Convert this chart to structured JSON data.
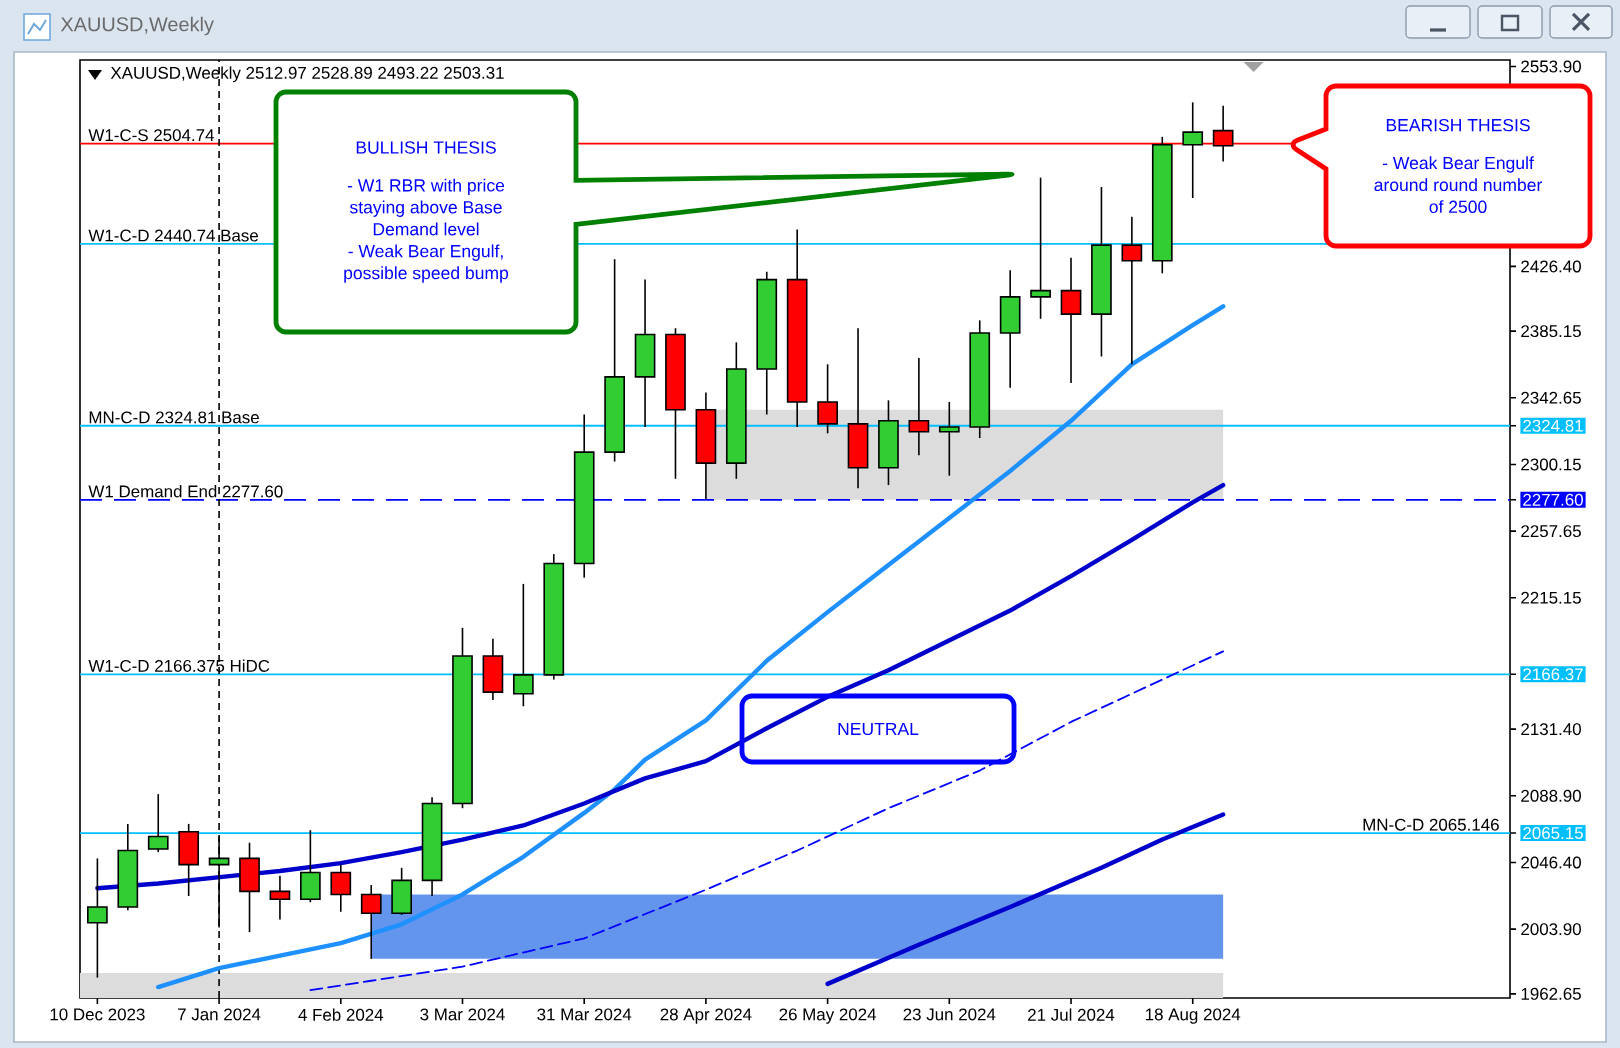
{
  "chart_data": {
    "type": "candlestick",
    "title": "XAUUSD,Weekly",
    "subtitle": "XAUUSD,Weekly 2512.97 2528.89 2493.22 2503.31",
    "x": [
      "2023-12-10",
      "2023-12-17",
      "2023-12-24",
      "2023-12-31",
      "2024-01-07",
      "2024-01-14",
      "2024-01-21",
      "2024-01-28",
      "2024-02-04",
      "2024-02-11",
      "2024-02-18",
      "2024-02-25",
      "2024-03-03",
      "2024-03-10",
      "2024-03-17",
      "2024-03-24",
      "2024-03-31",
      "2024-04-07",
      "2024-04-14",
      "2024-04-21",
      "2024-04-28",
      "2024-05-05",
      "2024-05-12",
      "2024-05-19",
      "2024-05-26",
      "2024-06-02",
      "2024-06-09",
      "2024-06-16",
      "2024-06-23",
      "2024-06-30",
      "2024-07-07",
      "2024-07-14",
      "2024-07-21",
      "2024-07-28",
      "2024-08-04",
      "2024-08-11",
      "2024-08-18",
      "2024-08-25"
    ],
    "ohlc": [
      [
        2008,
        2049,
        1973,
        2018
      ],
      [
        2018,
        2071,
        2016,
        2054
      ],
      [
        2055,
        2090,
        2053,
        2063
      ],
      [
        2066,
        2071,
        2025,
        2045
      ],
      [
        2045,
        2063,
        2005,
        2049
      ],
      [
        2049,
        2059,
        2002,
        2028
      ],
      [
        2028,
        2038,
        2010,
        2023
      ],
      [
        2023,
        2067,
        2021,
        2040
      ],
      [
        2040,
        2045,
        2015,
        2026
      ],
      [
        2026,
        2032,
        1985,
        2014
      ],
      [
        2014,
        2043,
        2013,
        2035
      ],
      [
        2035,
        2088,
        2025,
        2084
      ],
      [
        2084,
        2196,
        2081,
        2178
      ],
      [
        2178,
        2189,
        2150,
        2155
      ],
      [
        2154,
        2224,
        2146,
        2166
      ],
      [
        2166,
        2243,
        2163,
        2237
      ],
      [
        2237,
        2332,
        2228,
        2308
      ],
      [
        2308,
        2431,
        2302,
        2356
      ],
      [
        2356,
        2418,
        2324,
        2383
      ],
      [
        2383,
        2387,
        2291,
        2335
      ],
      [
        2335,
        2346,
        2278,
        2301
      ],
      [
        2301,
        2378,
        2291,
        2361
      ],
      [
        2361,
        2423,
        2332,
        2418
      ],
      [
        2418,
        2450,
        2324,
        2340
      ],
      [
        2340,
        2364,
        2320,
        2326
      ],
      [
        2326,
        2387,
        2285,
        2298
      ],
      [
        2298,
        2341,
        2287,
        2328
      ],
      [
        2328,
        2368,
        2306,
        2321
      ],
      [
        2321,
        2340,
        2293,
        2324
      ],
      [
        2324,
        2392,
        2317,
        2384
      ],
      [
        2384,
        2424,
        2349,
        2407
      ],
      [
        2407,
        2483,
        2393,
        2411
      ],
      [
        2411,
        2432,
        2352,
        2396
      ],
      [
        2396,
        2477,
        2369,
        2440
      ],
      [
        2440,
        2458,
        2364,
        2430
      ],
      [
        2430,
        2509,
        2422,
        2504
      ],
      [
        2504,
        2531,
        2470,
        2512
      ],
      [
        2512.97,
        2528.89,
        2493.22,
        2503.31
      ]
    ],
    "colors": [
      "#32cd32",
      "#32cd32",
      "#32cd32",
      "#ff0000",
      "#32cd32",
      "#ff0000",
      "#ff0000",
      "#32cd32",
      "#ff0000",
      "#ff0000",
      "#32cd32",
      "#32cd32",
      "#32cd32",
      "#ff0000",
      "#32cd32",
      "#32cd32",
      "#32cd32",
      "#32cd32",
      "#32cd32",
      "#ff0000",
      "#ff0000",
      "#32cd32",
      "#32cd32",
      "#ff0000",
      "#ff0000",
      "#ff0000",
      "#32cd32",
      "#ff0000",
      "#32cd32",
      "#32cd32",
      "#32cd32",
      "#32cd32",
      "#ff0000",
      "#32cd32",
      "#ff0000",
      "#32cd32",
      "#32cd32",
      "#ff0000"
    ],
    "series": [
      {
        "type": "area",
        "color": "#dcdcdc",
        "x": [
          "2024-04-28",
          "2024-08-25"
        ],
        "values": [
          null,
          null
        ],
        "lower": [
          2277.6,
          2277.6
        ],
        "upper": [
          2335,
          2335
        ]
      },
      {
        "type": "area",
        "color": "#6495ed",
        "x": [
          "2024-02-11",
          "2024-08-25"
        ],
        "values": [
          null,
          null
        ],
        "lower": [
          1985,
          1985
        ],
        "upper": [
          2026,
          2026
        ]
      },
      {
        "type": "area",
        "color": "#dcdcdc",
        "x": [
          "2023-12-06",
          "2024-08-25"
        ],
        "values": [
          null,
          null
        ],
        "lower": [
          1960,
          1960
        ],
        "upper": [
          1976,
          1976
        ]
      },
      {
        "type": "line",
        "color": "#1e90ff",
        "x": [
          "2023-12-24",
          "2024-01-07",
          "2024-01-21",
          "2024-02-04",
          "2024-02-18",
          "2024-03-03",
          "2024-03-17",
          "2024-03-31",
          "2024-04-07",
          "2024-04-14",
          "2024-04-28",
          "2024-05-12",
          "2024-05-26",
          "2024-06-09",
          "2024-06-23",
          "2024-07-07",
          "2024-07-21",
          "2024-08-04",
          "2024-08-18",
          "2024-08-25"
        ],
        "values": [
          1967,
          1979,
          1987,
          1995,
          2007,
          2026,
          2050,
          2078,
          2093,
          2112,
          2137,
          2175,
          2206,
          2236,
          2266,
          2296,
          2328,
          2364,
          2389,
          2401
        ]
      },
      {
        "type": "line",
        "color": "#0000cd",
        "x": [
          "2023-12-10",
          "2023-12-24",
          "2024-01-07",
          "2024-01-21",
          "2024-02-04",
          "2024-02-18",
          "2024-03-03",
          "2024-03-17",
          "2024-03-31",
          "2024-04-14",
          "2024-04-28",
          "2024-05-12",
          "2024-05-26",
          "2024-06-09",
          "2024-06-23",
          "2024-07-07",
          "2024-07-21",
          "2024-08-04",
          "2024-08-18",
          "2024-08-25"
        ],
        "values": [
          2030,
          2033,
          2037,
          2041,
          2046,
          2053,
          2061,
          2070,
          2084,
          2100,
          2111,
          2132,
          2152,
          2169,
          2188,
          2207,
          2229,
          2252,
          2276,
          2287
        ]
      },
      {
        "type": "line",
        "color": "#0000ff",
        "line_style": "dashed",
        "x": [
          "2024-01-28",
          "2024-02-11",
          "2024-03-03",
          "2024-03-31",
          "2024-04-28",
          "2024-05-19",
          "2024-06-09",
          "2024-06-30",
          "2024-07-21",
          "2024-08-11",
          "2024-08-25"
        ],
        "values": [
          1965,
          1971,
          1980,
          1998,
          2029,
          2054,
          2081,
          2105,
          2136,
          2163,
          2181
        ]
      },
      {
        "type": "line",
        "color": "#0000cd",
        "x": [
          "2024-05-26",
          "2024-06-16",
          "2024-07-07",
          "2024-07-28",
          "2024-08-11",
          "2024-08-25"
        ],
        "values": [
          1969,
          1994,
          2018,
          2043,
          2061,
          2077
        ]
      }
    ],
    "xlim": [
      "2023-12-06",
      "2024-10-30"
    ],
    "ylim": [
      1960,
      2558
    ],
    "xticks": [
      {
        "value": "2023-12-10",
        "label": "10 Dec 2023"
      },
      {
        "value": "2024-01-07",
        "label": "7 Jan 2024"
      },
      {
        "value": "2024-02-04",
        "label": "4 Feb 2024"
      },
      {
        "value": "2024-03-03",
        "label": "3 Mar 2024"
      },
      {
        "value": "2024-03-31",
        "label": "31 Mar 2024"
      },
      {
        "value": "2024-04-28",
        "label": "28 Apr 2024"
      },
      {
        "value": "2024-05-26",
        "label": "26 May 2024"
      },
      {
        "value": "2024-06-23",
        "label": "23 Jun 2024"
      },
      {
        "value": "2024-07-21",
        "label": "21 Jul 2024"
      },
      {
        "value": "2024-08-18",
        "label": "18 Aug 2024"
      }
    ],
    "yticks": [
      {
        "value": 2553.9,
        "label": "2553.90"
      },
      {
        "value": 2426.4,
        "label": "2426.40"
      },
      2385.15,
      2342.65,
      2324.81,
      2300.15,
      {
        "value": 2277.6,
        "label": "2277.60"
      },
      2257.65,
      2215.15,
      2166.37,
      {
        "value": 2131.4,
        "label": "2131.40"
      },
      {
        "value": 2088.9,
        "label": "2088.90"
      },
      2065.15,
      {
        "value": 2046.4,
        "label": "2046.40"
      },
      {
        "value": 2003.9,
        "label": "2003.90"
      },
      1962.65
    ],
    "ref_lines": [
      {
        "axis": "y",
        "value": 2504.74,
        "label": "W1-C-S 2504.74",
        "color": "#ff0000"
      },
      {
        "axis": "y",
        "value": 2440.74,
        "label": "W1-C-D 2440.74 Base",
        "color": "#00bfff"
      },
      {
        "axis": "y",
        "value": 2324.81,
        "label": "MN-C-D 2324.81 Base",
        "color": "#00bfff"
      },
      {
        "axis": "y",
        "value": 2277.6,
        "label": "W1 Demand End 2277.60",
        "color": "#0000ff",
        "line_style": "dashed"
      },
      {
        "axis": "y",
        "value": 2166.375,
        "label": "W1-C-D 2166.375 HiDC",
        "color": "#00bfff"
      },
      {
        "axis": "y",
        "value": 2065.146,
        "label": "MN-C-D 2065.146",
        "color": "#00bfff"
      },
      {
        "axis": "x",
        "value": "2024-01-07",
        "color": "#000000",
        "line_style": "dashed"
      }
    ],
    "annotations": [
      "BULLISH THESIS",
      "- W1 RBR with price staying above Base Demand level",
      "- Weak Bear Engulf, possible speed bump",
      "BEARISH THESIS",
      "- Weak Bear Engulf around round number of 2500",
      "NEUTRAL"
    ]
  }
}
